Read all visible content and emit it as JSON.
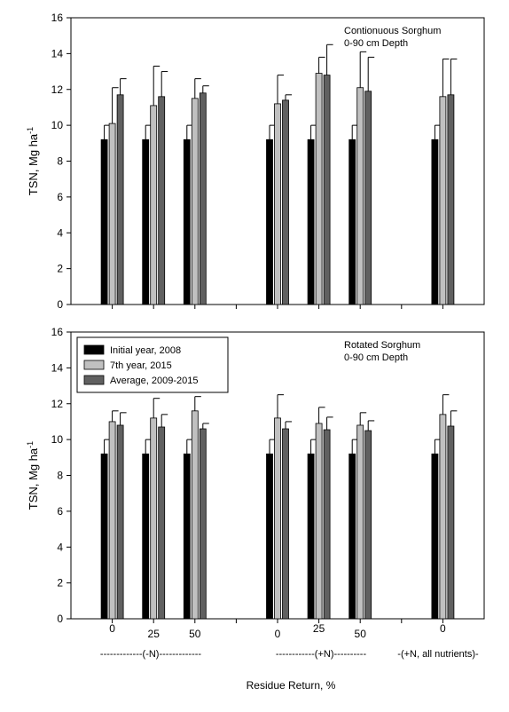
{
  "figure": {
    "xlabel": "Residue Return, %",
    "group_labels": [
      "-------------(-N)-------------",
      "------------(+N)----------",
      "-(+N, all nutrients)-"
    ],
    "legend": [
      {
        "label": "Initial year, 2008",
        "color": "#000000"
      },
      {
        "label": "7th year, 2015",
        "color": "#c0c0c0"
      },
      {
        "label": "Average, 2009-2015",
        "color": "#606060"
      }
    ]
  },
  "chart_data": [
    {
      "type": "bar",
      "annotation": [
        "Contionuous Sorghum",
        "0-90 cm Depth"
      ],
      "ylabel": "TSN, Mg ha",
      "ylabel_sup": "-1",
      "ylim": [
        0,
        16
      ],
      "yticks": [
        0,
        2,
        4,
        6,
        8,
        10,
        12,
        14,
        16
      ],
      "categories": [
        "0",
        "25",
        "50",
        "0",
        "25",
        "50",
        "0"
      ],
      "category_x": [
        0.5,
        1.5,
        2.5,
        4.5,
        5.5,
        6.5,
        8.5
      ],
      "xlim": [
        -0.5,
        9.5
      ],
      "series": [
        {
          "name": "Initial year, 2008",
          "values": [
            9.2,
            9.2,
            9.2,
            9.2,
            9.2,
            9.2,
            9.2
          ],
          "errors": [
            0.8,
            0.8,
            0.8,
            0.8,
            0.8,
            0.8,
            0.8
          ]
        },
        {
          "name": "7th year, 2015",
          "values": [
            10.1,
            11.1,
            11.5,
            11.2,
            12.9,
            12.1,
            11.6
          ],
          "errors": [
            2.0,
            2.2,
            1.1,
            1.6,
            0.9,
            2.0,
            2.1
          ]
        },
        {
          "name": "Average, 2009-2015",
          "values": [
            11.7,
            11.6,
            11.8,
            11.4,
            12.8,
            11.9,
            11.7
          ],
          "errors": [
            0.9,
            1.4,
            0.4,
            0.3,
            1.7,
            1.9,
            2.0
          ]
        }
      ]
    },
    {
      "type": "bar",
      "annotation": [
        "Rotated Sorghum",
        "0-90 cm Depth"
      ],
      "ylabel": "TSN, Mg ha",
      "ylabel_sup": "-1",
      "ylim": [
        0,
        16
      ],
      "yticks": [
        0,
        2,
        4,
        6,
        8,
        10,
        12,
        14,
        16
      ],
      "categories": [
        "0",
        "25",
        "50",
        "0",
        "25",
        "50",
        "0"
      ],
      "category_x": [
        0.5,
        1.5,
        2.5,
        4.5,
        5.5,
        6.5,
        8.5
      ],
      "xlim": [
        -0.5,
        9.5
      ],
      "legend_position": "top-left",
      "series": [
        {
          "name": "Initial year, 2008",
          "values": [
            9.2,
            9.2,
            9.2,
            9.2,
            9.2,
            9.2,
            9.2
          ],
          "errors": [
            0.8,
            0.8,
            0.8,
            0.8,
            0.8,
            0.8,
            0.8
          ]
        },
        {
          "name": "7th year, 2015",
          "values": [
            11.0,
            11.2,
            11.6,
            11.2,
            10.9,
            10.8,
            11.4
          ],
          "errors": [
            0.6,
            1.1,
            0.8,
            1.3,
            0.9,
            0.7,
            1.1
          ]
        },
        {
          "name": "Average, 2009-2015",
          "values": [
            10.8,
            10.7,
            10.6,
            10.6,
            10.55,
            10.5,
            10.75
          ],
          "errors": [
            0.7,
            0.7,
            0.3,
            0.4,
            0.7,
            0.55,
            0.85
          ]
        }
      ]
    }
  ]
}
